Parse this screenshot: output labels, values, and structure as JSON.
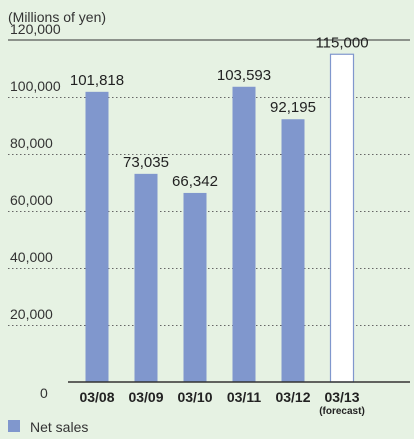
{
  "chart_data": {
    "type": "bar",
    "unit_label": "(Millions of yen)",
    "categories": [
      "03/08",
      "03/09",
      "03/10",
      "03/11",
      "03/12",
      "03/13"
    ],
    "category_sublabels": [
      "",
      "",
      "",
      "",
      "",
      "(forecast)"
    ],
    "series": [
      {
        "name": "Net sales",
        "values": [
          101818,
          73035,
          66342,
          103593,
          92195,
          115000
        ],
        "value_labels": [
          "101,818",
          "73,035",
          "66,342",
          "103,593",
          "92,195",
          "115,000"
        ],
        "forecast": [
          false,
          false,
          false,
          false,
          false,
          true
        ]
      }
    ],
    "yticks": [
      0,
      20000,
      40000,
      60000,
      80000,
      100000,
      120000
    ],
    "ytick_labels": [
      "0",
      "20,000",
      "40,000",
      "60,000",
      "80,000",
      "100,000",
      "120,000"
    ],
    "ylim": [
      0,
      120000
    ],
    "grid": "horizontal-dotted",
    "legend_position": "bottom-left",
    "colors": {
      "background": "#e6f2e3",
      "bar": "#8097cd",
      "forecast_fill": "#ffffff",
      "forecast_border": "#8097cd",
      "axis": "#333333",
      "grid": "#666666",
      "text": "#222222"
    }
  }
}
